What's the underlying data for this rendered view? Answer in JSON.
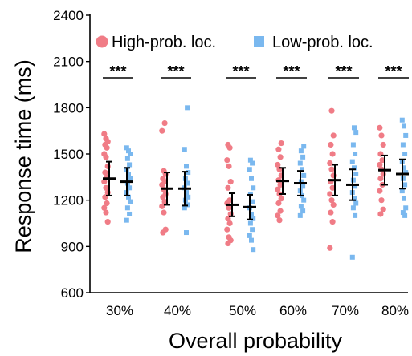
{
  "chart_data": {
    "type": "scatter",
    "xlabel": "Overall probability",
    "ylabel": "Response time (ms)",
    "ylim": [
      600,
      2400
    ],
    "yticks": [
      600,
      900,
      1200,
      1500,
      1800,
      2100,
      2400
    ],
    "categories": [
      "30%",
      "40%",
      "50%",
      "60%",
      "70%",
      "80%"
    ],
    "legend_position": "top",
    "significance": [
      "***",
      "***",
      "***",
      "***",
      "***",
      "***"
    ],
    "grid": false,
    "series": [
      {
        "name": "High-prob. loc.",
        "color": "#f07c86",
        "marker": "circle",
        "mean": [
          1340,
          1275,
          1170,
          1325,
          1330,
          1395
        ],
        "error": [
          110,
          105,
          75,
          85,
          100,
          95
        ],
        "points": [
          [
            1630,
            1600,
            1580,
            1560,
            1540,
            1500,
            1480,
            1420,
            1380,
            1350,
            1320,
            1280,
            1250,
            1220,
            1180,
            1150,
            1120,
            1060
          ],
          [
            1700,
            1650,
            1390,
            1370,
            1340,
            1320,
            1300,
            1270,
            1240,
            1220,
            1190,
            1160,
            1120,
            1010,
            990
          ],
          [
            1560,
            1540,
            1460,
            1420,
            1320,
            1280,
            1200,
            1180,
            1150,
            1110,
            1080,
            1050,
            1010,
            960,
            940,
            920
          ],
          [
            1570,
            1530,
            1480,
            1430,
            1400,
            1360,
            1330,
            1300,
            1270,
            1240,
            1210,
            1180,
            1130,
            1100,
            1070
          ],
          [
            1780,
            1620,
            1560,
            1500,
            1440,
            1400,
            1360,
            1320,
            1280,
            1240,
            1200,
            1170,
            1120,
            1060,
            890
          ],
          [
            1670,
            1620,
            1560,
            1500,
            1460,
            1430,
            1400,
            1370,
            1340,
            1300,
            1260,
            1200,
            1140,
            1110
          ]
        ]
      },
      {
        "name": "Low-prob. loc.",
        "color": "#7ab8ef",
        "marker": "square",
        "mean": [
          1320,
          1275,
          1155,
          1310,
          1300,
          1370
        ],
        "error": [
          90,
          110,
          80,
          80,
          100,
          95
        ],
        "points": [
          [
            1540,
            1520,
            1500,
            1470,
            1430,
            1400,
            1370,
            1340,
            1310,
            1280,
            1250,
            1220,
            1190,
            1150,
            1110,
            1070
          ],
          [
            1800,
            1530,
            1420,
            1380,
            1340,
            1310,
            1280,
            1250,
            1220,
            1200,
            1170,
            1150,
            990
          ],
          [
            1460,
            1440,
            1400,
            1340,
            1280,
            1240,
            1190,
            1150,
            1110,
            1080,
            1050,
            1010,
            970,
            940,
            880
          ],
          [
            1550,
            1520,
            1480,
            1440,
            1400,
            1360,
            1320,
            1290,
            1260,
            1230,
            1200,
            1160,
            1130,
            1100
          ],
          [
            1670,
            1640,
            1560,
            1500,
            1450,
            1410,
            1370,
            1330,
            1290,
            1250,
            1210,
            1180,
            1150,
            1100,
            830
          ],
          [
            1720,
            1680,
            1620,
            1560,
            1500,
            1450,
            1410,
            1380,
            1340,
            1300,
            1260,
            1210,
            1150,
            1120,
            1100
          ]
        ]
      }
    ]
  }
}
